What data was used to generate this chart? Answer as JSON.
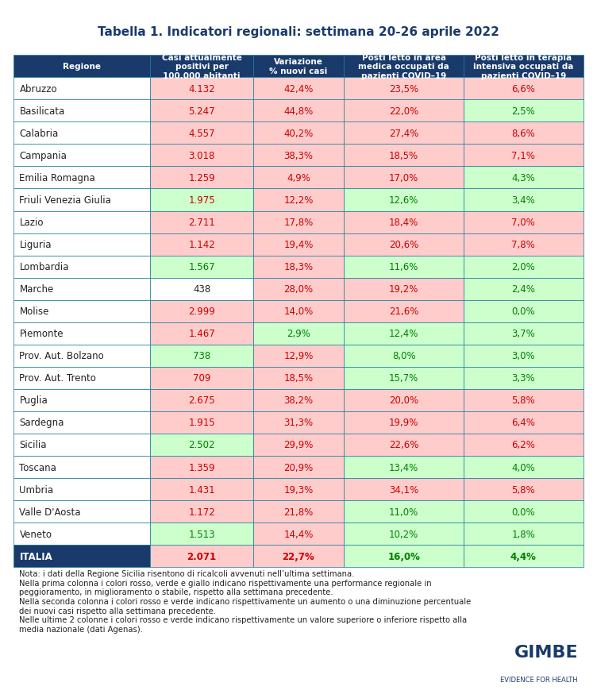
{
  "title": "Tabella 1. Indicatori regionali: settimana 20-26 aprile 2022",
  "header": [
    "Regione",
    "Casi attualmente\npositivi per\n100.000 abitanti",
    "Variazione\n% nuovi casi",
    "Posti letto in area\nmedica occupati da\npazienti COVID–19",
    "Posti letto in terapia\nintensiva occupati da\npazienti COVID–19"
  ],
  "rows": [
    [
      "Abruzzo",
      "4.132",
      "42,4%",
      "23,5%",
      "6,6%"
    ],
    [
      "Basilicata",
      "5.247",
      "44,8%",
      "22,0%",
      "2,5%"
    ],
    [
      "Calabria",
      "4.557",
      "40,2%",
      "27,4%",
      "8,6%"
    ],
    [
      "Campania",
      "3.018",
      "38,3%",
      "18,5%",
      "7,1%"
    ],
    [
      "Emilia Romagna",
      "1.259",
      "4,9%",
      "17,0%",
      "4,3%"
    ],
    [
      "Friuli Venezia Giulia",
      "1.975",
      "12,2%",
      "12,6%",
      "3,4%"
    ],
    [
      "Lazio",
      "2.711",
      "17,8%",
      "18,4%",
      "7,0%"
    ],
    [
      "Liguria",
      "1.142",
      "19,4%",
      "20,6%",
      "7,8%"
    ],
    [
      "Lombardia",
      "1.567",
      "18,3%",
      "11,6%",
      "2,0%"
    ],
    [
      "Marche",
      "438",
      "28,0%",
      "19,2%",
      "2,4%"
    ],
    [
      "Molise",
      "2.999",
      "14,0%",
      "21,6%",
      "0,0%"
    ],
    [
      "Piemonte",
      "1.467",
      "2,9%",
      "12,4%",
      "3,7%"
    ],
    [
      "Prov. Aut. Bolzano",
      "738",
      "12,9%",
      "8,0%",
      "3,0%"
    ],
    [
      "Prov. Aut. Trento",
      "709",
      "18,5%",
      "15,7%",
      "3,3%"
    ],
    [
      "Puglia",
      "2.675",
      "38,2%",
      "20,0%",
      "5,8%"
    ],
    [
      "Sardegna",
      "1.915",
      "31,3%",
      "19,9%",
      "6,4%"
    ],
    [
      "Sicilia",
      "2.502",
      "29,9%",
      "22,6%",
      "6,2%"
    ],
    [
      "Toscana",
      "1.359",
      "20,9%",
      "13,4%",
      "4,0%"
    ],
    [
      "Umbria",
      "1.431",
      "19,3%",
      "34,1%",
      "5,8%"
    ],
    [
      "Valle D'Aosta",
      "1.172",
      "21,8%",
      "11,0%",
      "0,0%"
    ],
    [
      "Veneto",
      "1.513",
      "14,4%",
      "10,2%",
      "1,8%"
    ],
    [
      "ITALIA",
      "2.071",
      "22,7%",
      "16,0%",
      "4,4%"
    ]
  ],
  "cell_bg": [
    [
      "white",
      "pink",
      "red",
      "red",
      "red"
    ],
    [
      "white",
      "pink",
      "red",
      "red",
      "green"
    ],
    [
      "white",
      "pink",
      "red",
      "red",
      "red"
    ],
    [
      "white",
      "pink",
      "red",
      "red",
      "red"
    ],
    [
      "white",
      "pink",
      "red",
      "red",
      "green"
    ],
    [
      "white",
      "green",
      "red",
      "green",
      "green"
    ],
    [
      "white",
      "pink",
      "red",
      "red",
      "red"
    ],
    [
      "white",
      "pink",
      "red",
      "red",
      "red"
    ],
    [
      "white",
      "green",
      "red",
      "green",
      "green"
    ],
    [
      "white",
      "white",
      "red",
      "red",
      "green"
    ],
    [
      "white",
      "pink",
      "red",
      "red",
      "green"
    ],
    [
      "white",
      "pink",
      "green",
      "green",
      "green"
    ],
    [
      "white",
      "green",
      "red",
      "green",
      "green"
    ],
    [
      "white",
      "pink",
      "red",
      "green",
      "green"
    ],
    [
      "white",
      "pink",
      "red",
      "red",
      "red"
    ],
    [
      "white",
      "pink",
      "red",
      "red",
      "red"
    ],
    [
      "white",
      "green",
      "red",
      "red",
      "red"
    ],
    [
      "white",
      "pink",
      "red",
      "green",
      "green"
    ],
    [
      "white",
      "pink",
      "red",
      "red",
      "red"
    ],
    [
      "white",
      "pink",
      "red",
      "green",
      "green"
    ],
    [
      "white",
      "green",
      "red",
      "green",
      "green"
    ],
    [
      "dark",
      "pink",
      "red",
      "green",
      "green"
    ]
  ],
  "cell_text_color": [
    [
      "black",
      "red",
      "red",
      "red",
      "red"
    ],
    [
      "black",
      "red",
      "red",
      "red",
      "green"
    ],
    [
      "black",
      "red",
      "red",
      "red",
      "red"
    ],
    [
      "black",
      "red",
      "red",
      "red",
      "red"
    ],
    [
      "black",
      "red",
      "red",
      "red",
      "green"
    ],
    [
      "black",
      "red",
      "red",
      "green",
      "green"
    ],
    [
      "black",
      "red",
      "red",
      "red",
      "red"
    ],
    [
      "black",
      "red",
      "red",
      "red",
      "red"
    ],
    [
      "black",
      "green",
      "red",
      "green",
      "green"
    ],
    [
      "black",
      "black",
      "red",
      "red",
      "green"
    ],
    [
      "black",
      "red",
      "red",
      "red",
      "green"
    ],
    [
      "black",
      "red",
      "green",
      "green",
      "green"
    ],
    [
      "black",
      "green",
      "red",
      "green",
      "green"
    ],
    [
      "black",
      "red",
      "red",
      "green",
      "green"
    ],
    [
      "black",
      "red",
      "red",
      "red",
      "red"
    ],
    [
      "black",
      "red",
      "red",
      "red",
      "red"
    ],
    [
      "black",
      "green",
      "red",
      "red",
      "red"
    ],
    [
      "black",
      "red",
      "red",
      "green",
      "green"
    ],
    [
      "black",
      "red",
      "red",
      "red",
      "red"
    ],
    [
      "black",
      "red",
      "red",
      "green",
      "green"
    ],
    [
      "black",
      "green",
      "red",
      "green",
      "green"
    ],
    [
      "white",
      "red",
      "red",
      "green",
      "green"
    ]
  ],
  "note": "Nota: i dati della Regione Sicilia risentono di ricalcoli avvenuti nell’ultima settimana.\nNella prima colonna i colori rosso, verde e giallo indicano rispettivamente una performance regionale in\npeggioramento, in miglioramento o stabile, rispetto alla settimana precedente.\nNella seconda colonna i colori rosso e verde indicano rispettivamente un aumento o una diminuzione percentuale\ndei nuovi casi rispetto alla settimana precedente.\nNelle ultime 2 colonne i colori rosso e verde indicano rispettivamente un valore superiore o inferiore rispetto alla\nmedia nazionale (dati Agenas).",
  "header_bg": "#1a3a6b",
  "header_text": "#ffffff",
  "pink_bg": "#ffcccc",
  "green_bg": "#ccffcc",
  "red_text": "#cc0000",
  "green_text": "#008000",
  "dark_row_bg": "#1a3a6b",
  "border_color": "#1a7a9a",
  "title_color": "#1a3a6b"
}
